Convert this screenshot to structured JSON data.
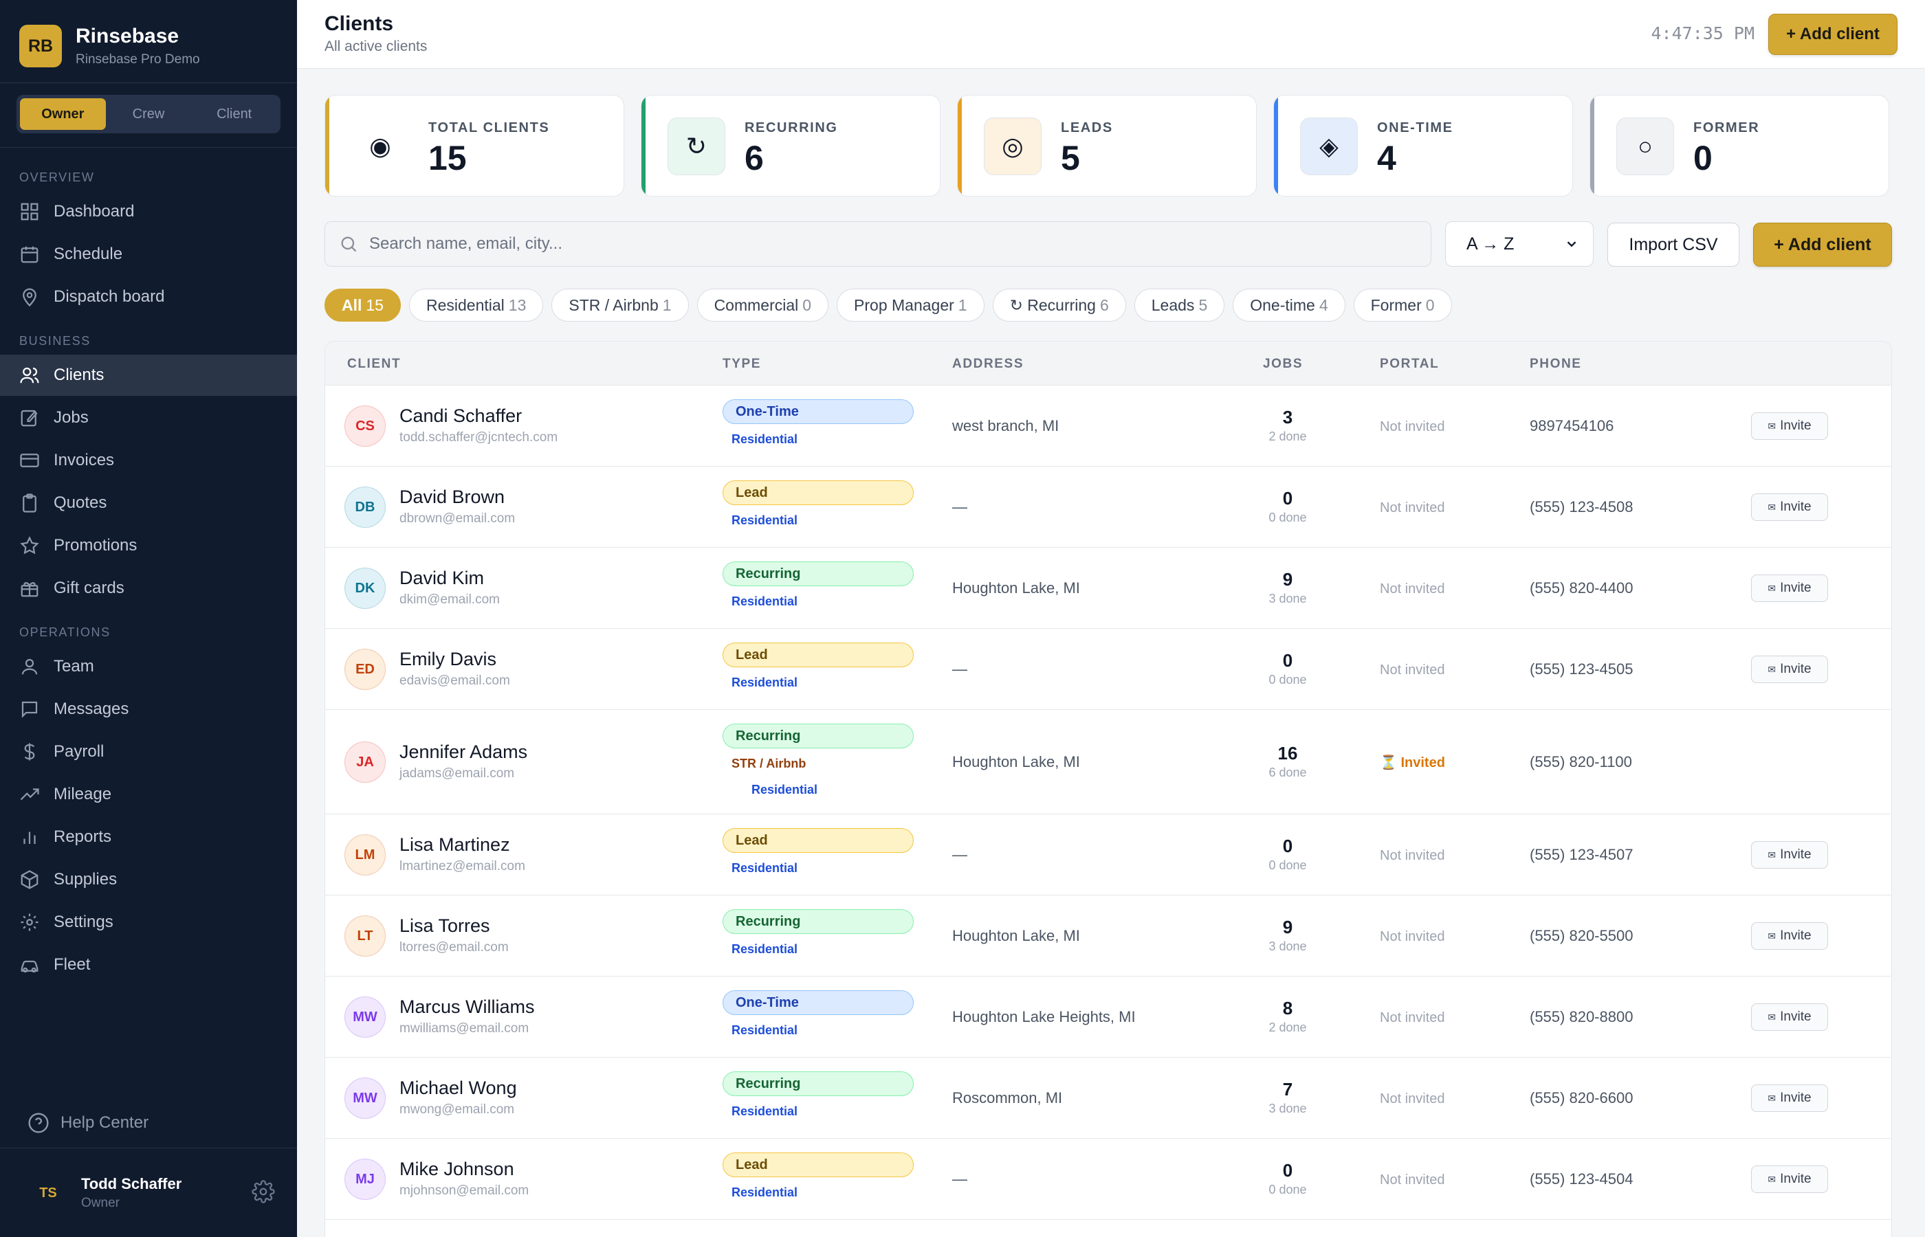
{
  "brand": {
    "logo": "RB",
    "name": "Rinsebase",
    "subtitle": "Rinsebase Pro Demo"
  },
  "roles": [
    "Owner",
    "Crew",
    "Client"
  ],
  "active_role": "Owner",
  "sidebar": {
    "sections": [
      "OVERVIEW",
      "BUSINESS",
      "OPERATIONS"
    ],
    "items": [
      {
        "label": "Dashboard",
        "icon": "dashboard-icon"
      },
      {
        "label": "Schedule",
        "icon": "calendar-icon"
      },
      {
        "label": "Dispatch board",
        "icon": "map-pin-icon"
      },
      {
        "label": "Clients",
        "icon": "users-icon",
        "active": true
      },
      {
        "label": "Jobs",
        "icon": "edit-icon"
      },
      {
        "label": "Invoices",
        "icon": "credit-card-icon"
      },
      {
        "label": "Quotes",
        "icon": "clipboard-icon"
      },
      {
        "label": "Promotions",
        "icon": "star-icon"
      },
      {
        "label": "Gift cards",
        "icon": "gift-icon"
      },
      {
        "label": "Team",
        "icon": "user-icon"
      },
      {
        "label": "Messages",
        "icon": "message-icon"
      },
      {
        "label": "Payroll",
        "icon": "dollar-icon"
      },
      {
        "label": "Mileage",
        "icon": "trending-icon"
      },
      {
        "label": "Reports",
        "icon": "bar-chart-icon"
      },
      {
        "label": "Supplies",
        "icon": "box-icon"
      },
      {
        "label": "Settings",
        "icon": "gear-icon"
      },
      {
        "label": "Fleet",
        "icon": "car-icon"
      }
    ],
    "help": "Help Center",
    "user": {
      "initials": "TS",
      "name": "Todd Schaffer",
      "role": "Owner"
    }
  },
  "header": {
    "title": "Clients",
    "subtitle": "All active clients",
    "clock": "4:47:35 PM",
    "add_label": "+ Add client"
  },
  "stats": [
    {
      "label": "TOTAL CLIENTS",
      "value": "15",
      "icon": "◉",
      "accent": "#d4a933",
      "icon_bg": "#ffffff"
    },
    {
      "label": "RECURRING",
      "value": "6",
      "icon": "↻",
      "accent": "#22a06b",
      "icon_bg": "#e8f7f0"
    },
    {
      "label": "LEADS",
      "value": "5",
      "icon": "◎",
      "accent": "#e8a020",
      "icon_bg": "#fdf1df"
    },
    {
      "label": "ONE-TIME",
      "value": "4",
      "icon": "◈",
      "accent": "#3b82f6",
      "icon_bg": "#e4edfc"
    },
    {
      "label": "FORMER",
      "value": "0",
      "icon": "○",
      "accent": "#a0a7b4",
      "icon_bg": "#f1f2f4"
    }
  ],
  "toolbar": {
    "search_placeholder": "Search name, email, city...",
    "sort_value": "A → Z",
    "import_label": "Import CSV",
    "add_label": "+ Add client"
  },
  "filters": [
    {
      "label": "All",
      "count": "15",
      "active": true
    },
    {
      "label": "Residential",
      "count": "13"
    },
    {
      "label": "STR / Airbnb",
      "count": "1"
    },
    {
      "label": "Commercial",
      "count": "0"
    },
    {
      "label": "Prop Manager",
      "count": "1"
    },
    {
      "label": "↻ Recurring",
      "count": "6"
    },
    {
      "label": "Leads",
      "count": "5"
    },
    {
      "label": "One-time",
      "count": "4"
    },
    {
      "label": "Former",
      "count": "0"
    }
  ],
  "table": {
    "columns": [
      "CLIENT",
      "TYPE",
      "ADDRESS",
      "JOBS",
      "PORTAL",
      "PHONE"
    ],
    "invite_label": "Invite",
    "rows": [
      {
        "initials": "CS",
        "name": "Candi Schaffer",
        "email": "todd.schaffer@jcntech.com",
        "type": "One-Time",
        "tags": [
          "Residential"
        ],
        "address": "west branch, MI",
        "jobs": "3",
        "done": "2 done",
        "portal": "Not invited",
        "phone": "9897454106",
        "av_bg": "#fde8e8",
        "av_fg": "#dc2626"
      },
      {
        "initials": "DB",
        "name": "David Brown",
        "email": "dbrown@email.com",
        "type": "Lead",
        "tags": [
          "Residential"
        ],
        "address": "—",
        "jobs": "0",
        "done": "0 done",
        "portal": "Not invited",
        "phone": "(555) 123-4508",
        "av_bg": "#e0f2f7",
        "av_fg": "#0e7490"
      },
      {
        "initials": "DK",
        "name": "David Kim",
        "email": "dkim@email.com",
        "type": "Recurring",
        "tags": [
          "Residential"
        ],
        "address": "Houghton Lake, MI",
        "jobs": "9",
        "done": "3 done",
        "portal": "Not invited",
        "phone": "(555) 820-4400",
        "av_bg": "#e0f2f7",
        "av_fg": "#0e7490"
      },
      {
        "initials": "ED",
        "name": "Emily Davis",
        "email": "edavis@email.com",
        "type": "Lead",
        "tags": [
          "Residential"
        ],
        "address": "—",
        "jobs": "0",
        "done": "0 done",
        "portal": "Not invited",
        "phone": "(555) 123-4505",
        "av_bg": "#fdeedd",
        "av_fg": "#c2410c"
      },
      {
        "initials": "JA",
        "name": "Jennifer Adams",
        "email": "jadams@email.com",
        "type": "Recurring",
        "tags": [
          "STR / Airbnb",
          "Residential"
        ],
        "address": "Houghton Lake, MI",
        "jobs": "16",
        "done": "6 done",
        "portal": "Invited",
        "phone": "(555) 820-1100",
        "av_bg": "#fde8e8",
        "av_fg": "#dc2626"
      },
      {
        "initials": "LM",
        "name": "Lisa Martinez",
        "email": "lmartinez@email.com",
        "type": "Lead",
        "tags": [
          "Residential"
        ],
        "address": "—",
        "jobs": "0",
        "done": "0 done",
        "portal": "Not invited",
        "phone": "(555) 123-4507",
        "av_bg": "#fdeedd",
        "av_fg": "#c2410c"
      },
      {
        "initials": "LT",
        "name": "Lisa Torres",
        "email": "ltorres@email.com",
        "type": "Recurring",
        "tags": [
          "Residential"
        ],
        "address": "Houghton Lake, MI",
        "jobs": "9",
        "done": "3 done",
        "portal": "Not invited",
        "phone": "(555) 820-5500",
        "av_bg": "#fdeedd",
        "av_fg": "#c2410c"
      },
      {
        "initials": "MW",
        "name": "Marcus Williams",
        "email": "mwilliams@email.com",
        "type": "One-Time",
        "tags": [
          "Residential"
        ],
        "address": "Houghton Lake Heights, MI",
        "jobs": "8",
        "done": "2 done",
        "portal": "Not invited",
        "phone": "(555) 820-8800",
        "av_bg": "#f1e8fd",
        "av_fg": "#7c3aed"
      },
      {
        "initials": "MW",
        "name": "Michael Wong",
        "email": "mwong@email.com",
        "type": "Recurring",
        "tags": [
          "Residential"
        ],
        "address": "Roscommon, MI",
        "jobs": "7",
        "done": "3 done",
        "portal": "Not invited",
        "phone": "(555) 820-6600",
        "av_bg": "#f1e8fd",
        "av_fg": "#7c3aed"
      },
      {
        "initials": "MJ",
        "name": "Mike Johnson",
        "email": "mjohnson@email.com",
        "type": "Lead",
        "tags": [
          "Residential"
        ],
        "address": "—",
        "jobs": "0",
        "done": "0 done",
        "portal": "Not invited",
        "phone": "(555) 123-4504",
        "av_bg": "#f1e8fd",
        "av_fg": "#7c3aed"
      }
    ]
  }
}
